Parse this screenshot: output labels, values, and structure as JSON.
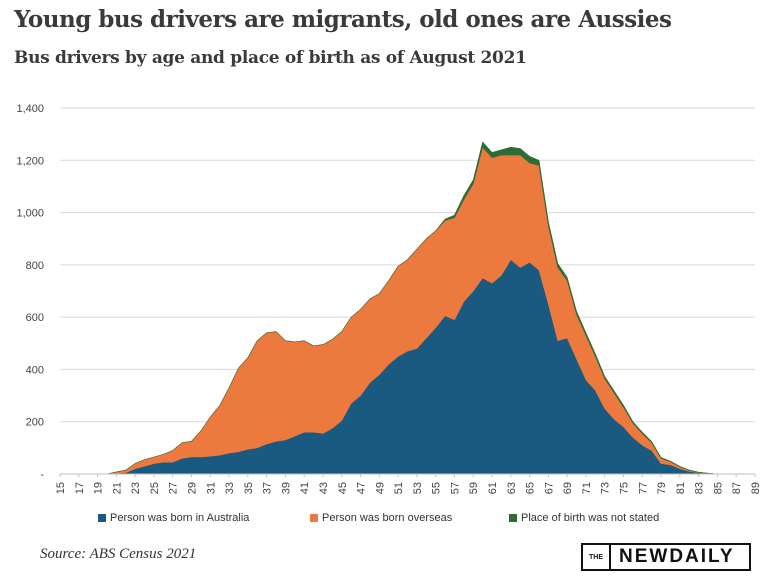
{
  "title": "Young bus drivers are migrants, old ones are Aussies",
  "subtitle": "Bus drivers by age and place of birth as of August 2021",
  "source": "Source: ABS Census 2021",
  "logo": {
    "small": "THE",
    "main": "NEWDAILY"
  },
  "chart_data": {
    "type": "area",
    "stacked": true,
    "x": [
      15,
      16,
      17,
      18,
      19,
      20,
      21,
      22,
      23,
      24,
      25,
      26,
      27,
      28,
      29,
      30,
      31,
      32,
      33,
      34,
      35,
      36,
      37,
      38,
      39,
      40,
      41,
      42,
      43,
      44,
      45,
      46,
      47,
      48,
      49,
      50,
      51,
      52,
      53,
      54,
      55,
      56,
      57,
      58,
      59,
      60,
      61,
      62,
      63,
      64,
      65,
      66,
      67,
      68,
      69,
      70,
      71,
      72,
      73,
      74,
      75,
      76,
      77,
      78,
      79,
      80,
      81,
      82,
      83,
      84,
      85,
      86,
      87,
      88,
      89
    ],
    "x_tick_labels": [
      "15",
      "17",
      "19",
      "21",
      "23",
      "25",
      "27",
      "29",
      "31",
      "33",
      "35",
      "37",
      "39",
      "41",
      "43",
      "45",
      "47",
      "49",
      "51",
      "53",
      "55",
      "57",
      "59",
      "61",
      "63",
      "65",
      "67",
      "69",
      "71",
      "73",
      "75",
      "77",
      "79",
      "81",
      "83",
      "85",
      "87",
      "89"
    ],
    "y_tick_labels": [
      "-",
      "200",
      "400",
      "600",
      "800",
      "1,000",
      "1,200",
      "1,400"
    ],
    "y_ticks": [
      0,
      200,
      400,
      600,
      800,
      1000,
      1200,
      1400
    ],
    "ylim": [
      0,
      1400
    ],
    "grid": "horizontal",
    "legend_position": "bottom",
    "series": [
      {
        "name": "Person was born in Australia",
        "color": "#1a5a80",
        "values": [
          0,
          0,
          0,
          0,
          0,
          0,
          3,
          5,
          20,
          30,
          40,
          45,
          45,
          60,
          65,
          65,
          68,
          72,
          80,
          85,
          95,
          100,
          115,
          125,
          130,
          145,
          160,
          160,
          155,
          175,
          205,
          270,
          300,
          350,
          380,
          420,
          450,
          470,
          480,
          520,
          560,
          605,
          590,
          660,
          700,
          750,
          730,
          760,
          820,
          790,
          810,
          780,
          650,
          510,
          520,
          440,
          360,
          320,
          250,
          210,
          180,
          140,
          110,
          90,
          40,
          35,
          20,
          10,
          5,
          2,
          0,
          0,
          0,
          0,
          0
        ],
        "stroke": "#174f70"
      },
      {
        "name": "Person was born overseas",
        "color": "#ec7a3f",
        "values": [
          0,
          0,
          0,
          0,
          0,
          0,
          5,
          10,
          20,
          25,
          25,
          30,
          45,
          60,
          60,
          100,
          150,
          190,
          250,
          320,
          350,
          410,
          425,
          420,
          380,
          360,
          350,
          330,
          340,
          340,
          340,
          330,
          330,
          320,
          310,
          320,
          345,
          350,
          380,
          380,
          370,
          365,
          390,
          390,
          410,
          500,
          480,
          460,
          400,
          430,
          380,
          400,
          300,
          280,
          220,
          170,
          170,
          130,
          115,
          100,
          75,
          55,
          45,
          30,
          20,
          12,
          8,
          4,
          1,
          1,
          0,
          0,
          0,
          0,
          0
        ]
      },
      {
        "name": "Place of birth was not stated",
        "color": "#2e6b35",
        "values": [
          0,
          0,
          0,
          0,
          0,
          0,
          0,
          0,
          0,
          0,
          0,
          0,
          0,
          0,
          0,
          0,
          0,
          0,
          0,
          0,
          0,
          0,
          0,
          0,
          0,
          0,
          0,
          0,
          0,
          0,
          0,
          0,
          0,
          0,
          0,
          0,
          0,
          0,
          0,
          0,
          0,
          5,
          10,
          15,
          15,
          20,
          20,
          20,
          30,
          25,
          25,
          20,
          15,
          15,
          12,
          12,
          10,
          10,
          8,
          8,
          8,
          5,
          5,
          4,
          3,
          2,
          1,
          1,
          1,
          0,
          0,
          0,
          0,
          0,
          0
        ]
      }
    ]
  }
}
